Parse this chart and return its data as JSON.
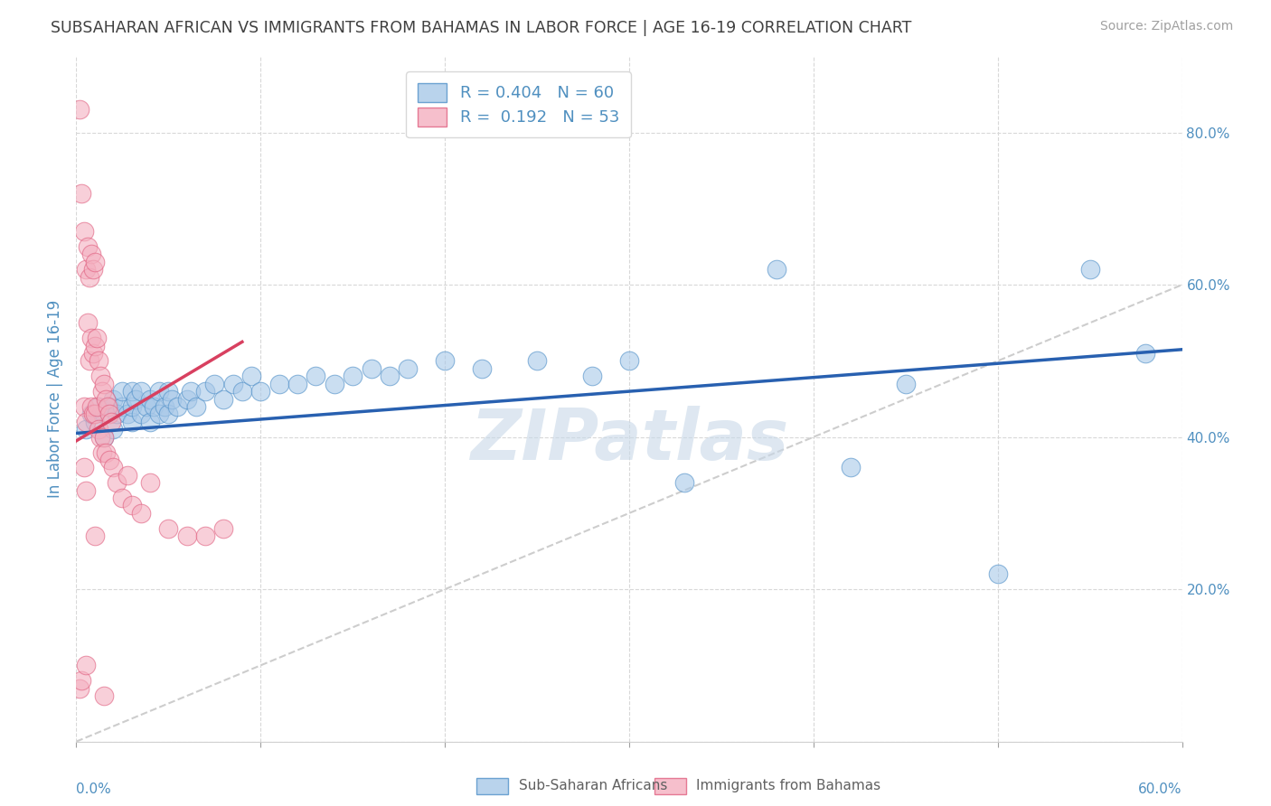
{
  "title": "SUBSAHARAN AFRICAN VS IMMIGRANTS FROM BAHAMAS IN LABOR FORCE | AGE 16-19 CORRELATION CHART",
  "source": "Source: ZipAtlas.com",
  "ylabel": "In Labor Force | Age 16-19",
  "xlim": [
    0.0,
    0.6
  ],
  "ylim": [
    0.0,
    0.9
  ],
  "xtick_left_label": "0.0%",
  "xtick_right_label": "60.0%",
  "yticks": [
    0.0,
    0.2,
    0.4,
    0.6,
    0.8
  ],
  "ytick_labels": [
    "",
    "20.0%",
    "40.0%",
    "60.0%",
    "80.0%"
  ],
  "legend_r1": "R = 0.404",
  "legend_n1": "N = 60",
  "legend_r2": "R =  0.192",
  "legend_n2": "N = 53",
  "blue_scatter_x": [
    0.005,
    0.008,
    0.01,
    0.012,
    0.015,
    0.015,
    0.018,
    0.02,
    0.02,
    0.022,
    0.025,
    0.025,
    0.028,
    0.03,
    0.03,
    0.03,
    0.032,
    0.035,
    0.035,
    0.038,
    0.04,
    0.04,
    0.042,
    0.045,
    0.045,
    0.048,
    0.05,
    0.05,
    0.052,
    0.055,
    0.06,
    0.062,
    0.065,
    0.07,
    0.075,
    0.08,
    0.085,
    0.09,
    0.095,
    0.1,
    0.11,
    0.12,
    0.13,
    0.14,
    0.15,
    0.16,
    0.17,
    0.18,
    0.2,
    0.22,
    0.25,
    0.28,
    0.3,
    0.33,
    0.38,
    0.42,
    0.45,
    0.5,
    0.55,
    0.58
  ],
  "blue_scatter_y": [
    0.41,
    0.43,
    0.42,
    0.44,
    0.4,
    0.43,
    0.44,
    0.41,
    0.45,
    0.43,
    0.44,
    0.46,
    0.43,
    0.42,
    0.44,
    0.46,
    0.45,
    0.43,
    0.46,
    0.44,
    0.42,
    0.45,
    0.44,
    0.43,
    0.46,
    0.44,
    0.43,
    0.46,
    0.45,
    0.44,
    0.45,
    0.46,
    0.44,
    0.46,
    0.47,
    0.45,
    0.47,
    0.46,
    0.48,
    0.46,
    0.47,
    0.47,
    0.48,
    0.47,
    0.48,
    0.49,
    0.48,
    0.49,
    0.5,
    0.49,
    0.5,
    0.48,
    0.5,
    0.34,
    0.62,
    0.36,
    0.47,
    0.22,
    0.62,
    0.51
  ],
  "pink_scatter_x": [
    0.002,
    0.002,
    0.003,
    0.003,
    0.004,
    0.004,
    0.004,
    0.005,
    0.005,
    0.005,
    0.006,
    0.006,
    0.007,
    0.007,
    0.008,
    0.008,
    0.008,
    0.009,
    0.009,
    0.009,
    0.01,
    0.01,
    0.01,
    0.011,
    0.011,
    0.012,
    0.012,
    0.013,
    0.013,
    0.014,
    0.014,
    0.015,
    0.015,
    0.016,
    0.016,
    0.017,
    0.018,
    0.018,
    0.019,
    0.02,
    0.022,
    0.025,
    0.028,
    0.03,
    0.035,
    0.04,
    0.05,
    0.06,
    0.07,
    0.08,
    0.005,
    0.01,
    0.015
  ],
  "pink_scatter_y": [
    0.83,
    0.07,
    0.72,
    0.08,
    0.67,
    0.44,
    0.36,
    0.62,
    0.42,
    0.33,
    0.65,
    0.55,
    0.61,
    0.5,
    0.64,
    0.53,
    0.44,
    0.62,
    0.51,
    0.43,
    0.63,
    0.52,
    0.43,
    0.53,
    0.44,
    0.5,
    0.41,
    0.48,
    0.4,
    0.46,
    0.38,
    0.47,
    0.4,
    0.45,
    0.38,
    0.44,
    0.43,
    0.37,
    0.42,
    0.36,
    0.34,
    0.32,
    0.35,
    0.31,
    0.3,
    0.34,
    0.28,
    0.27,
    0.27,
    0.28,
    0.1,
    0.27,
    0.06
  ],
  "blue_line_x": [
    0.0,
    0.6
  ],
  "blue_line_y": [
    0.405,
    0.515
  ],
  "pink_line_x": [
    0.0,
    0.09
  ],
  "pink_line_y": [
    0.395,
    0.525
  ],
  "ref_line_x": [
    0.0,
    0.9
  ],
  "ref_line_y": [
    0.0,
    0.9
  ],
  "blue_color": "#a8c8e8",
  "blue_edge_color": "#5090c8",
  "pink_color": "#f4b0c0",
  "pink_edge_color": "#e06080",
  "blue_line_color": "#2860b0",
  "pink_line_color": "#d84060",
  "ref_line_color": "#c8c8c8",
  "watermark": "ZIPatlas",
  "watermark_color": "#c8d8e8",
  "background_color": "#ffffff",
  "grid_color": "#d8d8d8",
  "title_color": "#404040",
  "axis_label_color": "#5090c0",
  "ylabel_color": "#5090c0",
  "tick_color": "#a0a0a0",
  "legend_text_color": "#5090c0",
  "bottom_label_color": "#606060"
}
